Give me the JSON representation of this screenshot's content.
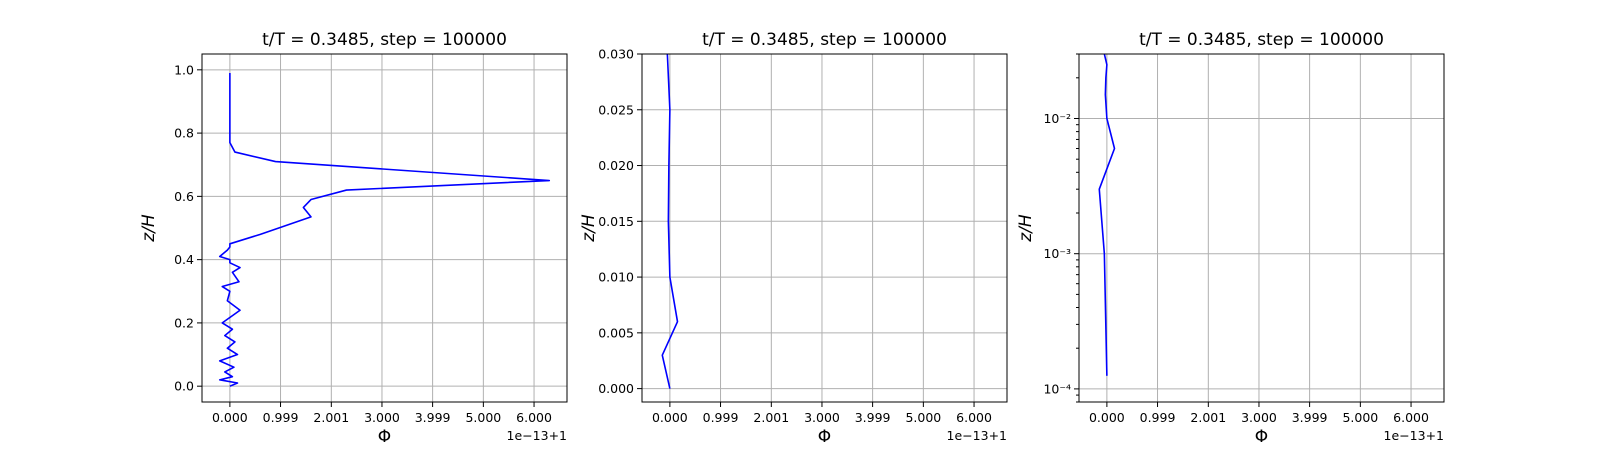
{
  "chart_data": [
    {
      "type": "line",
      "title": "t/T = 0.3485, step = 100000",
      "xlabel": "Φ",
      "ylabel": "z/H",
      "x_offset_label": "1e−13+1",
      "x_ticks": [
        "0.000",
        "0.999",
        "2.001",
        "3.000",
        "3.999",
        "5.000",
        "6.000"
      ],
      "x_tick_values": [
        0,
        0.999,
        2.001,
        3.0,
        3.999,
        5.0,
        6.0
      ],
      "xlim": [
        -0.55,
        6.65
      ],
      "y_scale": "linear",
      "ylim": [
        -0.05,
        1.05
      ],
      "y_ticks": [
        "0.0",
        "0.2",
        "0.4",
        "0.6",
        "0.8",
        "1.0"
      ],
      "y_tick_values": [
        0,
        0.2,
        0.4,
        0.6,
        0.8,
        1.0
      ],
      "grid": true,
      "color": "#0000ff",
      "series": [
        {
          "x": [
            0.0,
            0.15,
            -0.2,
            0.05,
            -0.1,
            0.08,
            -0.2,
            0.15,
            -0.05,
            0.1,
            -0.1,
            0.05,
            -0.15,
            0.2,
            -0.05,
            0.0,
            -0.15,
            0.18,
            0.05,
            0.2,
            0.0,
            0.0,
            -0.2,
            -0.05,
            0.0,
            0.0,
            0.6,
            1.6,
            1.45,
            1.6,
            2.3,
            6.3,
            0.9,
            0.1,
            0.0,
            0.0,
            0.0
          ],
          "y": [
            0.0,
            0.01,
            0.02,
            0.03,
            0.045,
            0.06,
            0.08,
            0.1,
            0.12,
            0.14,
            0.16,
            0.18,
            0.2,
            0.24,
            0.27,
            0.3,
            0.315,
            0.33,
            0.36,
            0.375,
            0.39,
            0.4,
            0.41,
            0.43,
            0.44,
            0.45,
            0.48,
            0.535,
            0.565,
            0.59,
            0.62,
            0.65,
            0.71,
            0.74,
            0.77,
            0.8,
            0.99
          ]
        }
      ]
    },
    {
      "type": "line",
      "title": "t/T = 0.3485, step = 100000",
      "xlabel": "Φ",
      "ylabel": "z/H",
      "x_offset_label": "1e−13+1",
      "x_ticks": [
        "0.000",
        "0.999",
        "2.001",
        "3.000",
        "3.999",
        "5.000",
        "6.000"
      ],
      "x_tick_values": [
        0,
        0.999,
        2.001,
        3.0,
        3.999,
        5.0,
        6.0
      ],
      "xlim": [
        -0.55,
        6.65
      ],
      "y_scale": "linear",
      "ylim": [
        -0.0012,
        0.03
      ],
      "y_ticks": [
        "0.000",
        "0.005",
        "0.010",
        "0.015",
        "0.020",
        "0.025",
        "0.030"
      ],
      "y_tick_values": [
        0,
        0.005,
        0.01,
        0.015,
        0.02,
        0.025,
        0.03
      ],
      "grid": true,
      "color": "#0000ff",
      "series": [
        {
          "x": [
            0.0,
            -0.15,
            0.15,
            0.0,
            -0.03,
            -0.02,
            0.0,
            -0.05
          ],
          "y": [
            0.0,
            0.003,
            0.006,
            0.01,
            0.015,
            0.02,
            0.025,
            0.03
          ]
        }
      ]
    },
    {
      "type": "line",
      "title": "t/T = 0.3485, step = 100000",
      "xlabel": "Φ",
      "ylabel": "z/H",
      "x_offset_label": "1e−13+1",
      "x_ticks": [
        "0.000",
        "0.999",
        "2.001",
        "3.000",
        "3.999",
        "5.000",
        "6.000"
      ],
      "x_tick_values": [
        0,
        0.999,
        2.001,
        3.0,
        3.999,
        5.0,
        6.0
      ],
      "xlim": [
        -0.55,
        6.65
      ],
      "y_scale": "log",
      "ylim": [
        8e-05,
        0.03
      ],
      "y_ticks": [
        "10⁻⁴",
        "10⁻³",
        "10⁻²"
      ],
      "y_tick_values": [
        0.0001,
        0.001,
        0.01
      ],
      "grid": true,
      "color": "#0000ff",
      "series": [
        {
          "x": [
            0.0,
            -0.05,
            -0.15,
            0.15,
            0.0,
            -0.03,
            -0.02,
            0.0,
            -0.05
          ],
          "y": [
            0.000125,
            0.001,
            0.003,
            0.006,
            0.01,
            0.015,
            0.02,
            0.025,
            0.03
          ]
        }
      ]
    }
  ]
}
